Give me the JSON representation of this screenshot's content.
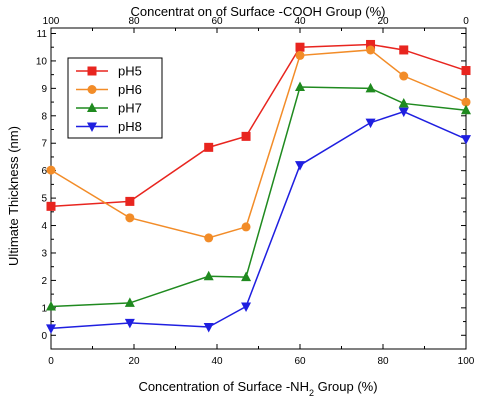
{
  "chart_data": {
    "type": "line",
    "title": "",
    "xlabel": "Concentration of Surface -NH",
    "xlabel_sub": "2",
    "xlabel_tail": " Group (%)",
    "x2label": "Concentrat on of Surface -COOH Group (%)",
    "ylabel": "Ultimate Thickness (nm)",
    "xlim": [
      0,
      100
    ],
    "ylim": [
      -0.5,
      11.2
    ],
    "x_ticks": [
      0,
      20,
      40,
      60,
      80,
      100
    ],
    "x2_ticks": [
      {
        "x": 0,
        "label": "100"
      },
      {
        "x": 20,
        "label": "80"
      },
      {
        "x": 40,
        "label": "60"
      },
      {
        "x": 60,
        "label": "40"
      },
      {
        "x": 80,
        "label": "20"
      },
      {
        "x": 100,
        "label": "0"
      }
    ],
    "y_ticks": [
      0,
      1,
      2,
      3,
      4,
      5,
      6,
      7,
      8,
      9,
      10,
      11
    ],
    "grid": false,
    "legend_position": "top-left",
    "series": [
      {
        "name": "pH5",
        "color": "#e8251f",
        "marker": "square",
        "points": [
          [
            0,
            4.7
          ],
          [
            19,
            4.88
          ],
          [
            38,
            6.85
          ],
          [
            47,
            7.25
          ],
          [
            60,
            10.5
          ],
          [
            77,
            10.6
          ],
          [
            85,
            10.4
          ],
          [
            100,
            9.65
          ]
        ]
      },
      {
        "name": "pH6",
        "color": "#f28c28",
        "marker": "circle",
        "points": [
          [
            0,
            6.02
          ],
          [
            19,
            4.28
          ],
          [
            38,
            3.55
          ],
          [
            47,
            3.95
          ],
          [
            60,
            10.2
          ],
          [
            77,
            10.4
          ],
          [
            85,
            9.45
          ],
          [
            100,
            8.5
          ]
        ]
      },
      {
        "name": "pH7",
        "color": "#1f8a1f",
        "marker": "triangle-up",
        "points": [
          [
            0,
            1.05
          ],
          [
            19,
            1.18
          ],
          [
            38,
            2.15
          ],
          [
            47,
            2.12
          ],
          [
            60,
            9.05
          ],
          [
            77,
            9.0
          ],
          [
            85,
            8.45
          ],
          [
            100,
            8.2
          ]
        ]
      },
      {
        "name": "pH8",
        "color": "#1f1fe0",
        "marker": "triangle-down",
        "points": [
          [
            0,
            0.25
          ],
          [
            19,
            0.45
          ],
          [
            38,
            0.3
          ],
          [
            47,
            1.05
          ],
          [
            60,
            6.2
          ],
          [
            77,
            7.75
          ],
          [
            85,
            8.15
          ],
          [
            100,
            7.15
          ]
        ]
      }
    ]
  }
}
